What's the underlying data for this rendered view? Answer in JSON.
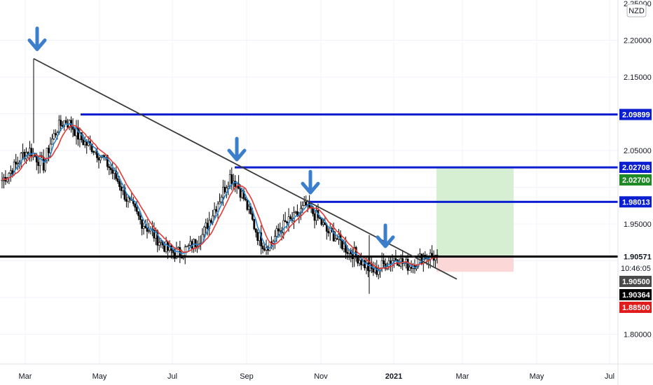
{
  "chart_data": {
    "type": "candlestick",
    "currency": "NZD",
    "y_axis": {
      "ticks": [
        "2.25000",
        "2.20000",
        "2.15000",
        "2.05000",
        "1.95000",
        "1.80000"
      ],
      "range": [
        1.75,
        2.25
      ]
    },
    "x_axis": {
      "ticks": [
        "Mar",
        "May",
        "Jul",
        "Sep",
        "Nov",
        "2021",
        "Mar",
        "May",
        "Jul"
      ]
    },
    "horizontal_levels": [
      {
        "value": 2.09899,
        "label": "2.09899",
        "color": "#0b1fd1"
      },
      {
        "value": 2.02708,
        "label": "2.02708",
        "color": "#0b1fd1"
      },
      {
        "value": 1.98013,
        "label": "1.98013",
        "color": "#0b1fd1"
      },
      {
        "value": 1.90571,
        "label": "1.90571",
        "color": "#000000"
      }
    ],
    "price_badges": [
      {
        "value": 2.027,
        "label": "2.02700",
        "color": "#1e8a24"
      },
      {
        "value": 1.905,
        "label": "1.90500",
        "color": "#4a4a4a"
      },
      {
        "value": 1.90364,
        "label": "1.90364",
        "color": "#000000"
      },
      {
        "value": 1.885,
        "label": "1.88500",
        "color": "#e01c1c"
      }
    ],
    "countdown": "10:46:05",
    "trendline": {
      "from": [
        0.0,
        2.175
      ],
      "to": [
        1.0,
        1.875
      ]
    },
    "position": {
      "entry": 1.905,
      "target": 2.027,
      "stop": 1.885
    },
    "arrows": [
      {
        "value": 2.18
      },
      {
        "value": 2.03
      },
      {
        "value": 1.985
      },
      {
        "value": 1.912
      }
    ],
    "price_path": [
      [
        0,
        2.01
      ],
      [
        1,
        2.02
      ],
      [
        2,
        2.03
      ],
      [
        3,
        2.045
      ],
      [
        4,
        2.05
      ],
      [
        5,
        2.04
      ],
      [
        6,
        2.03
      ],
      [
        7,
        2.06
      ],
      [
        8,
        2.08
      ],
      [
        9,
        2.09
      ],
      [
        10,
        2.085
      ],
      [
        11,
        2.07
      ],
      [
        12,
        2.06
      ],
      [
        13,
        2.055
      ],
      [
        14,
        2.045
      ],
      [
        15,
        2.035
      ],
      [
        16,
        2.02
      ],
      [
        17,
        2.005
      ],
      [
        18,
        1.985
      ],
      [
        19,
        1.97
      ],
      [
        20,
        1.955
      ],
      [
        21,
        1.945
      ],
      [
        22,
        1.935
      ],
      [
        23,
        1.925
      ],
      [
        24,
        1.915
      ],
      [
        25,
        1.91
      ],
      [
        26,
        1.912
      ],
      [
        27,
        1.918
      ],
      [
        28,
        1.925
      ],
      [
        29,
        1.935
      ],
      [
        30,
        1.955
      ],
      [
        31,
        1.975
      ],
      [
        32,
        1.995
      ],
      [
        33,
        2.015
      ],
      [
        34,
        2.005
      ],
      [
        35,
        1.985
      ],
      [
        36,
        1.96
      ],
      [
        37,
        1.935
      ],
      [
        38,
        1.92
      ],
      [
        39,
        1.925
      ],
      [
        40,
        1.94
      ],
      [
        41,
        1.95
      ],
      [
        42,
        1.955
      ],
      [
        43,
        1.965
      ],
      [
        44,
        1.975
      ],
      [
        45,
        1.965
      ],
      [
        46,
        1.955
      ],
      [
        47,
        1.94
      ],
      [
        48,
        1.935
      ],
      [
        49,
        1.925
      ],
      [
        50,
        1.915
      ],
      [
        51,
        1.91
      ],
      [
        52,
        1.9
      ],
      [
        53,
        1.89
      ],
      [
        54,
        1.885
      ],
      [
        55,
        1.893
      ],
      [
        56,
        1.9
      ],
      [
        57,
        1.904
      ],
      [
        58,
        1.897
      ],
      [
        59,
        1.893
      ],
      [
        60,
        1.899
      ],
      [
        61,
        1.907
      ],
      [
        62,
        1.906
      ],
      [
        63,
        1.905
      ]
    ]
  }
}
